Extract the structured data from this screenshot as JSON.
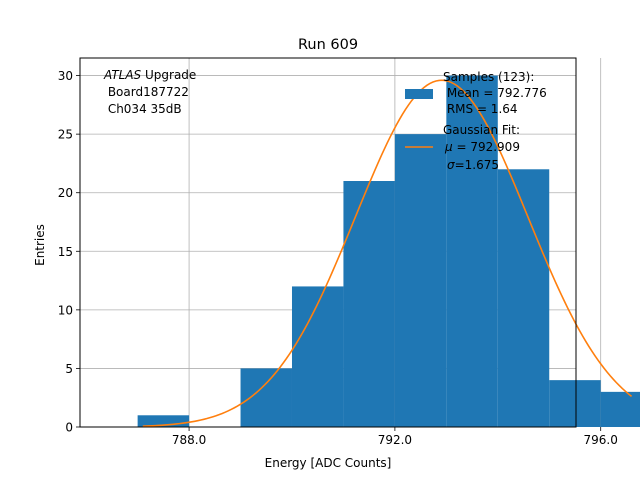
{
  "chart_data": {
    "type": "bar",
    "title": "Run 609",
    "xlabel": "Energy [ADC Counts]",
    "ylabel": "Entries",
    "xlim": [
      785.88,
      795.52
    ],
    "ylim": [
      0,
      31.5
    ],
    "xticks": [
      788.0,
      792.0,
      796.0
    ],
    "xtick_labels": [
      "788.0",
      "792.0",
      "796.0"
    ],
    "yticks": [
      0,
      5,
      10,
      15,
      20,
      25,
      30
    ],
    "ytick_labels": [
      "0",
      "5",
      "10",
      "15",
      "20",
      "25",
      "30"
    ],
    "grid": true,
    "histogram": {
      "bin_edges": [
        787,
        788,
        789,
        790,
        791,
        792,
        793,
        794,
        795,
        796,
        797
      ],
      "counts": [
        1,
        0,
        5,
        12,
        21,
        25,
        30,
        22,
        4,
        3
      ],
      "color": "#1f77b4"
    },
    "fit": {
      "mu": 792.909,
      "sigma": 1.675,
      "amplitude": 29.6,
      "x_range": [
        787.1,
        796.6
      ],
      "color": "#ff7f0e"
    },
    "annotation": {
      "line1_italic": "ATLAS",
      "line1_rest": " Upgrade",
      "line2": " Board187722",
      "line3": " Ch034 35dB"
    },
    "legend": {
      "position": "top-right",
      "samples_title": "Samples (123):",
      "samples_mean": " Mean = 792.776",
      "samples_rms": " RMS = 1.64",
      "fit_title": "Gaussian Fit:",
      "fit_mu_symbol": "μ",
      "fit_mu_value": " = 792.909",
      "fit_sigma_symbol": "σ",
      "fit_sigma_value": "=1.675"
    }
  }
}
